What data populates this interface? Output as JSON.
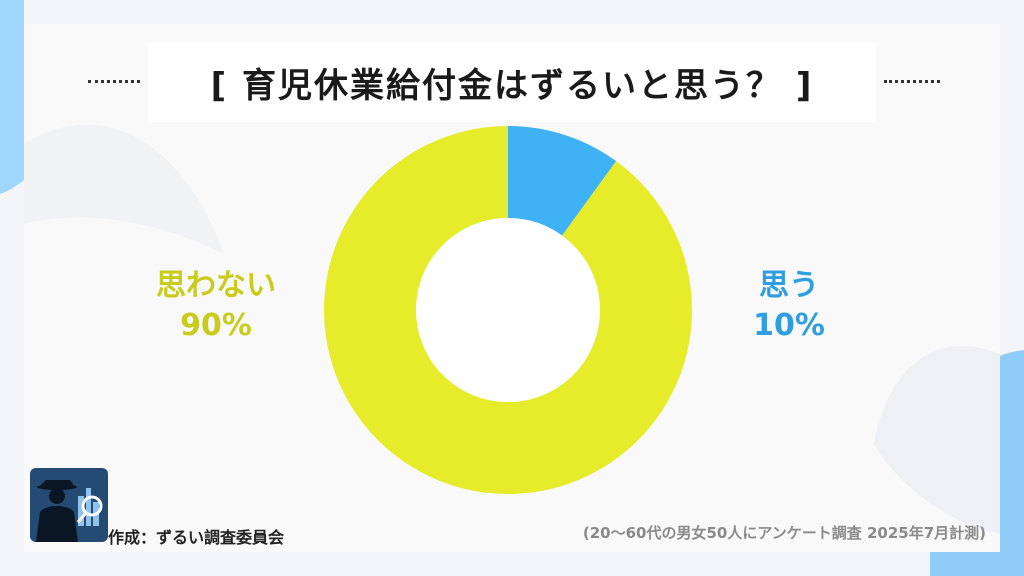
{
  "title": "[ 育児休業給付金はずるいと思う？ ]",
  "chart_data": {
    "type": "pie",
    "donut": true,
    "title": "[ 育児休業給付金はずるいと思う？ ]",
    "categories": [
      "思う",
      "思わない"
    ],
    "values": [
      10,
      90
    ],
    "value_labels": [
      "10%",
      "90%"
    ],
    "colors": [
      "#3fb2f5",
      "#e6ec2a"
    ]
  },
  "labels": {
    "yes_name": "思う",
    "yes_pct": "10%",
    "no_name": "思わない",
    "no_pct": "90%"
  },
  "colors": {
    "yes": "#3fb2f5",
    "yes_text": "#2e9ee0",
    "no": "#e6ec2a",
    "no_text": "#c9cc1c",
    "accent_blue": "#9fd6fb"
  },
  "footer": {
    "credit": "作成：ずるい調査委員会",
    "note": "(20～60代の男女50人にアンケート調査 2025年7月計測)"
  },
  "logo": {
    "icon": "detective-silhouette-icon"
  }
}
